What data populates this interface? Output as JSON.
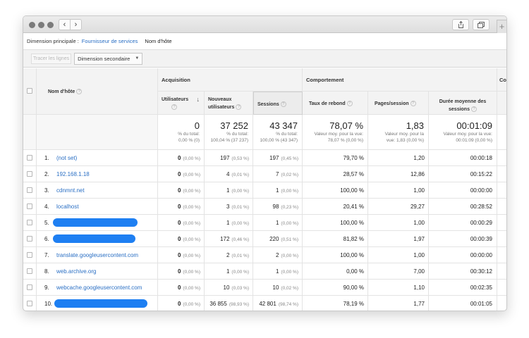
{
  "nav": {
    "back_glyph": "‹",
    "forward_glyph": "›",
    "share_icon": "share-icon",
    "tabs_icon": "tabs-icon",
    "new_tab_glyph": "+"
  },
  "dimension": {
    "label": "Dimension principale :",
    "options": [
      "Fournisseur de services",
      "Nom d'hôte"
    ],
    "active": "Nom d'hôte"
  },
  "toolbar": {
    "plot_rows": "Tracer les lignes",
    "secondary_dimension": "Dimension secondaire"
  },
  "table": {
    "host_header": "Nom d'hôte",
    "groups": {
      "acquisition": "Acquisition",
      "behavior": "Comportement",
      "conversions_partial": "Con"
    },
    "columns": {
      "users": "Utilisateurs",
      "new_users_1": "Nouveaux",
      "new_users_2": "utilisateurs",
      "sessions": "Sessions",
      "bounce": "Taux de rebond",
      "pages": "Pages/session",
      "duration_1": "Durée moyenne des",
      "duration_2": "sessions"
    },
    "totals": {
      "users": {
        "value": "0",
        "l1": "% du total:",
        "l2": "0,00 % (0)"
      },
      "new_users": {
        "value": "37 252",
        "l1": "% du total:",
        "l2": "100,04 % (37 237)"
      },
      "sessions": {
        "value": "43 347",
        "l1": "% du total:",
        "l2": "100,00 % (43 347)"
      },
      "bounce": {
        "value": "78,07 %",
        "l1": "Valeur moy. pour la vue:",
        "l2": "78,07 % (0,00 %)"
      },
      "pages": {
        "value": "1,83",
        "l1": "Valeur moy. pour la",
        "l2": "vue: 1,83 (0,00 %)"
      },
      "duration": {
        "value": "00:01:09",
        "l1": "Valeur moy. pour la vue:",
        "l2": "00:01:09 (0,00 %)"
      }
    },
    "rows": [
      {
        "num": "1.",
        "host": "(not set)",
        "users": "0",
        "users_pct": "(0,00 %)",
        "new_users": "197",
        "new_users_pct": "(0,53 %)",
        "sessions": "197",
        "sessions_pct": "(0,45 %)",
        "bounce": "79,70 %",
        "pages": "1,20",
        "duration": "00:00:18"
      },
      {
        "num": "2.",
        "host": "192.168.1.18",
        "users": "0",
        "users_pct": "(0,00 %)",
        "new_users": "4",
        "new_users_pct": "(0,01 %)",
        "sessions": "7",
        "sessions_pct": "(0,02 %)",
        "bounce": "28,57 %",
        "pages": "12,86",
        "duration": "00:15:22"
      },
      {
        "num": "3.",
        "host": "cdnmnt.net",
        "users": "0",
        "users_pct": "(0,00 %)",
        "new_users": "1",
        "new_users_pct": "(0,00 %)",
        "sessions": "1",
        "sessions_pct": "(0,00 %)",
        "bounce": "100,00 %",
        "pages": "1,00",
        "duration": "00:00:00"
      },
      {
        "num": "4.",
        "host": "localhost",
        "users": "0",
        "users_pct": "(0,00 %)",
        "new_users": "3",
        "new_users_pct": "(0,01 %)",
        "sessions": "98",
        "sessions_pct": "(0,23 %)",
        "bounce": "20,41 %",
        "pages": "29,27",
        "duration": "00:28:52"
      },
      {
        "num": "5.",
        "host": "",
        "users": "0",
        "users_pct": "(0,00 %)",
        "new_users": "1",
        "new_users_pct": "(0,00 %)",
        "sessions": "1",
        "sessions_pct": "(0,00 %)",
        "bounce": "100,00 %",
        "pages": "1,00",
        "duration": "00:00:29"
      },
      {
        "num": "6.",
        "host": "",
        "users": "0",
        "users_pct": "(0,00 %)",
        "new_users": "172",
        "new_users_pct": "(0,46 %)",
        "sessions": "220",
        "sessions_pct": "(0,51 %)",
        "bounce": "81,82 %",
        "pages": "1,97",
        "duration": "00:00:39"
      },
      {
        "num": "7.",
        "host": "translate.googleusercontent.com",
        "users": "0",
        "users_pct": "(0,00 %)",
        "new_users": "2",
        "new_users_pct": "(0,01 %)",
        "sessions": "2",
        "sessions_pct": "(0,00 %)",
        "bounce": "100,00 %",
        "pages": "1,00",
        "duration": "00:00:00"
      },
      {
        "num": "8.",
        "host": "web.archive.org",
        "users": "0",
        "users_pct": "(0,00 %)",
        "new_users": "1",
        "new_users_pct": "(0,00 %)",
        "sessions": "1",
        "sessions_pct": "(0,00 %)",
        "bounce": "0,00 %",
        "pages": "7,00",
        "duration": "00:30:12"
      },
      {
        "num": "9.",
        "host": "webcache.googleusercontent.com",
        "users": "0",
        "users_pct": "(0,00 %)",
        "new_users": "10",
        "new_users_pct": "(0,03 %)",
        "sessions": "10",
        "sessions_pct": "(0,02 %)",
        "bounce": "90,00 %",
        "pages": "1,10",
        "duration": "00:02:35"
      },
      {
        "num": "10.",
        "host": "",
        "users": "0",
        "users_pct": "(0,00 %)",
        "new_users": "36 855",
        "new_users_pct": "(98,93 %)",
        "sessions": "42 801",
        "sessions_pct": "(98,74 %)",
        "bounce": "78,19 %",
        "pages": "1,77",
        "duration": "00:01:05"
      }
    ]
  }
}
